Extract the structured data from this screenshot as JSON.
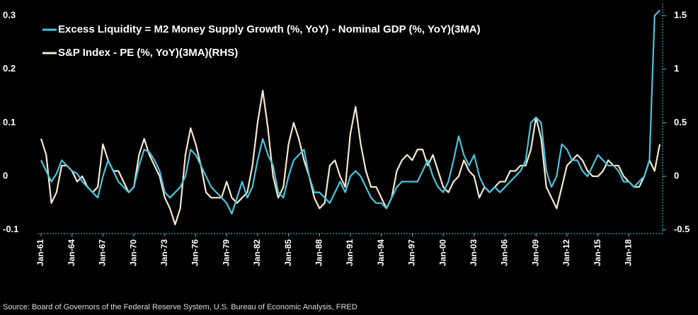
{
  "chart_data": {
    "type": "line",
    "legend": "upper left",
    "source": "Source: Board of Governors of the Federal Reserve System, U.S. Bureau of Economic Analysis, FRED",
    "categories": [
      "Jan-61",
      null,
      null,
      null,
      null,
      null,
      "Jan-64",
      null,
      null,
      null,
      null,
      null,
      "Jan-67",
      null,
      null,
      null,
      null,
      null,
      "Jan-70",
      null,
      null,
      null,
      null,
      null,
      "Jan-73",
      null,
      null,
      null,
      null,
      null,
      "Jan-76",
      null,
      null,
      null,
      null,
      null,
      "Jan-79",
      null,
      null,
      null,
      null,
      null,
      "Jan-82",
      null,
      null,
      null,
      null,
      null,
      "Jan-85",
      null,
      null,
      null,
      null,
      null,
      "Jan-88",
      null,
      null,
      null,
      null,
      null,
      "Jan-91",
      null,
      null,
      null,
      null,
      null,
      "Jan-94",
      null,
      null,
      null,
      null,
      null,
      "Jan-97",
      null,
      null,
      null,
      null,
      null,
      "Jan-00",
      null,
      null,
      null,
      null,
      null,
      "Jan-03",
      null,
      null,
      null,
      null,
      null,
      "Jan-06",
      null,
      null,
      null,
      null,
      null,
      "Jan-09",
      null,
      null,
      null,
      null,
      null,
      "Jan-12",
      null,
      null,
      null,
      null,
      null,
      "Jan-15",
      null,
      null,
      null,
      null,
      null,
      "Jan-18",
      null,
      null,
      null,
      null,
      null,
      null
    ],
    "series": [
      {
        "name": "Excess Liquidity = M2 Money Supply Growth (%, YoY) - Nominal GDP (%, YoY)(3MA)",
        "color": "#4cc4dc",
        "axis": "y",
        "values": [
          0.03,
          0.01,
          -0.01,
          0.005,
          0.03,
          0.02,
          0.01,
          0.005,
          -0.01,
          -0.02,
          -0.03,
          -0.04,
          0.0,
          0.03,
          0.01,
          -0.01,
          -0.02,
          -0.03,
          -0.02,
          0.02,
          0.05,
          0.045,
          0.03,
          0.01,
          -0.03,
          -0.04,
          -0.03,
          -0.02,
          0.0,
          0.05,
          0.04,
          0.02,
          0.0,
          -0.02,
          -0.03,
          -0.04,
          -0.05,
          -0.07,
          -0.04,
          -0.01,
          -0.04,
          -0.02,
          0.03,
          0.07,
          0.04,
          0.02,
          -0.03,
          -0.04,
          0.0,
          0.03,
          0.04,
          0.05,
          0.0,
          -0.03,
          -0.03,
          -0.04,
          -0.05,
          -0.03,
          -0.01,
          -0.03,
          0.0,
          0.01,
          0.0,
          -0.02,
          -0.04,
          -0.05,
          -0.05,
          -0.06,
          -0.04,
          -0.02,
          -0.01,
          -0.01,
          -0.01,
          -0.01,
          0.01,
          0.03,
          0.0,
          -0.02,
          -0.03,
          -0.01,
          0.03,
          0.075,
          0.04,
          0.02,
          0.04,
          0.0,
          -0.02,
          -0.03,
          -0.02,
          -0.03,
          -0.02,
          -0.01,
          0.0,
          0.01,
          0.03,
          0.1,
          0.11,
          0.1,
          0.01,
          -0.02,
          0.0,
          0.06,
          0.05,
          0.03,
          0.03,
          0.01,
          0.0,
          0.02,
          0.04,
          0.03,
          0.02,
          0.02,
          0.01,
          -0.01,
          -0.01,
          -0.02,
          -0.01,
          0.0,
          0.03,
          0.3,
          0.31
        ]
      },
      {
        "name": "S&P Index - PE (%, YoY)(3MA)(RHS)",
        "color": "#f6e8d0",
        "axis": "y2",
        "values": [
          0.35,
          0.2,
          -0.25,
          -0.15,
          0.1,
          0.1,
          0.05,
          -0.05,
          0.0,
          -0.1,
          -0.15,
          -0.1,
          0.3,
          0.15,
          0.05,
          0.05,
          -0.05,
          -0.15,
          -0.1,
          0.2,
          0.35,
          0.2,
          0.1,
          0.0,
          -0.2,
          -0.3,
          -0.45,
          -0.3,
          0.2,
          0.45,
          0.3,
          0.1,
          -0.15,
          -0.2,
          -0.2,
          -0.2,
          -0.05,
          -0.2,
          -0.25,
          -0.2,
          -0.15,
          0.1,
          0.5,
          0.8,
          0.45,
          0.0,
          -0.2,
          -0.1,
          0.3,
          0.5,
          0.35,
          0.15,
          0.0,
          -0.2,
          -0.3,
          -0.25,
          0.1,
          0.15,
          0.0,
          -0.1,
          0.4,
          0.65,
          0.3,
          0.05,
          -0.1,
          -0.1,
          -0.2,
          -0.3,
          -0.2,
          0.05,
          0.15,
          0.2,
          0.15,
          0.25,
          0.25,
          0.1,
          0.2,
          0.05,
          -0.1,
          -0.15,
          -0.05,
          0.0,
          0.15,
          0.05,
          0.0,
          -0.2,
          -0.1,
          -0.15,
          -0.1,
          -0.05,
          -0.05,
          0.05,
          0.05,
          0.1,
          0.1,
          0.25,
          0.55,
          0.35,
          -0.1,
          -0.2,
          -0.3,
          -0.1,
          0.1,
          0.15,
          0.2,
          0.15,
          0.05,
          0.0,
          0.0,
          0.05,
          0.15,
          0.1,
          0.1,
          0.0,
          -0.05,
          -0.1,
          -0.1,
          0.0,
          0.15,
          0.05,
          0.3
        ]
      }
    ],
    "ylim": [
      -0.107,
      0.316
    ],
    "yticks": [
      -0.1,
      0,
      0.1,
      0.2,
      0.3
    ],
    "y2lim": [
      -0.535,
      1.58
    ],
    "y2ticks": [
      -0.5,
      0,
      0.5,
      1,
      1.5
    ]
  }
}
